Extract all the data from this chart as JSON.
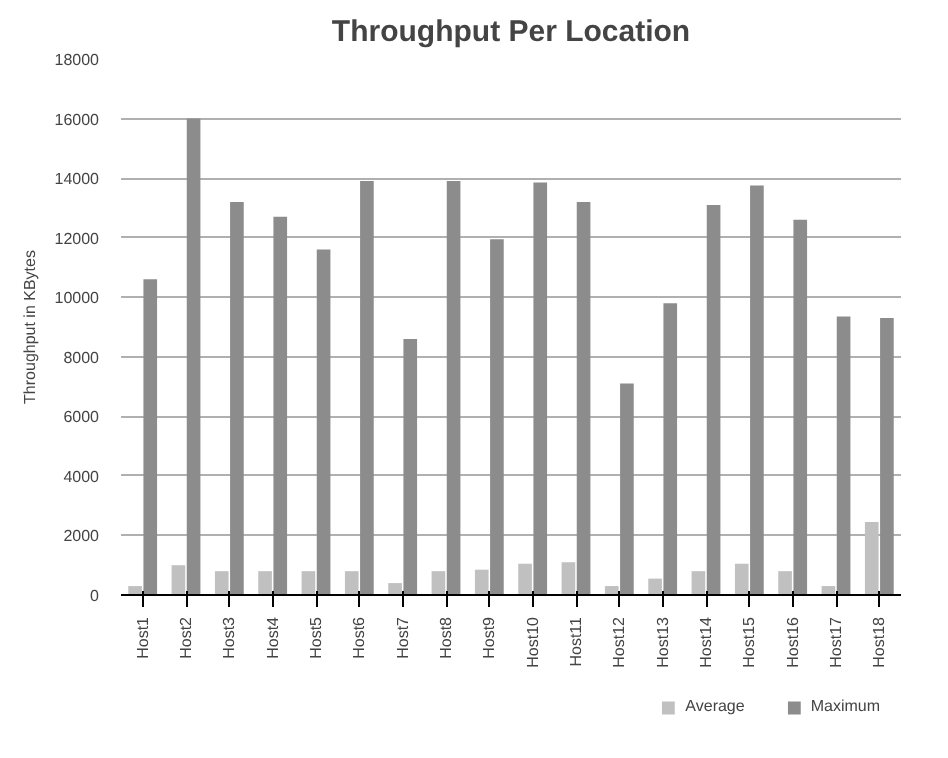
{
  "chart_data": {
    "type": "bar",
    "title": "Throughput Per Location",
    "ylabel": "Throughput in KBytes",
    "categories": [
      "Host1",
      "Host2",
      "Host3",
      "Host4",
      "Host5",
      "Host6",
      "Host7",
      "Host8",
      "Host9",
      "Host10",
      "Host11",
      "Host12",
      "Host13",
      "Host14",
      "Host15",
      "Host16",
      "Host17",
      "Host18"
    ],
    "series": [
      {
        "name": "Average",
        "color": "#c0c0c0",
        "values": [
          300,
          1000,
          800,
          800,
          800,
          800,
          400,
          800,
          850,
          1050,
          1100,
          300,
          550,
          800,
          1050,
          800,
          300,
          2450
        ]
      },
      {
        "name": "Maximum",
        "color": "#8c8c8c",
        "values": [
          10600,
          16000,
          13200,
          12700,
          11600,
          13900,
          8600,
          13900,
          11950,
          13850,
          13200,
          7100,
          9800,
          13100,
          13750,
          12600,
          9350,
          9300
        ]
      }
    ],
    "ylim": [
      0,
      18000
    ],
    "yticks": [
      0,
      2000,
      4000,
      6000,
      8000,
      10000,
      12000,
      14000,
      16000,
      18000
    ],
    "grid": "y",
    "legend": "bottom right"
  }
}
